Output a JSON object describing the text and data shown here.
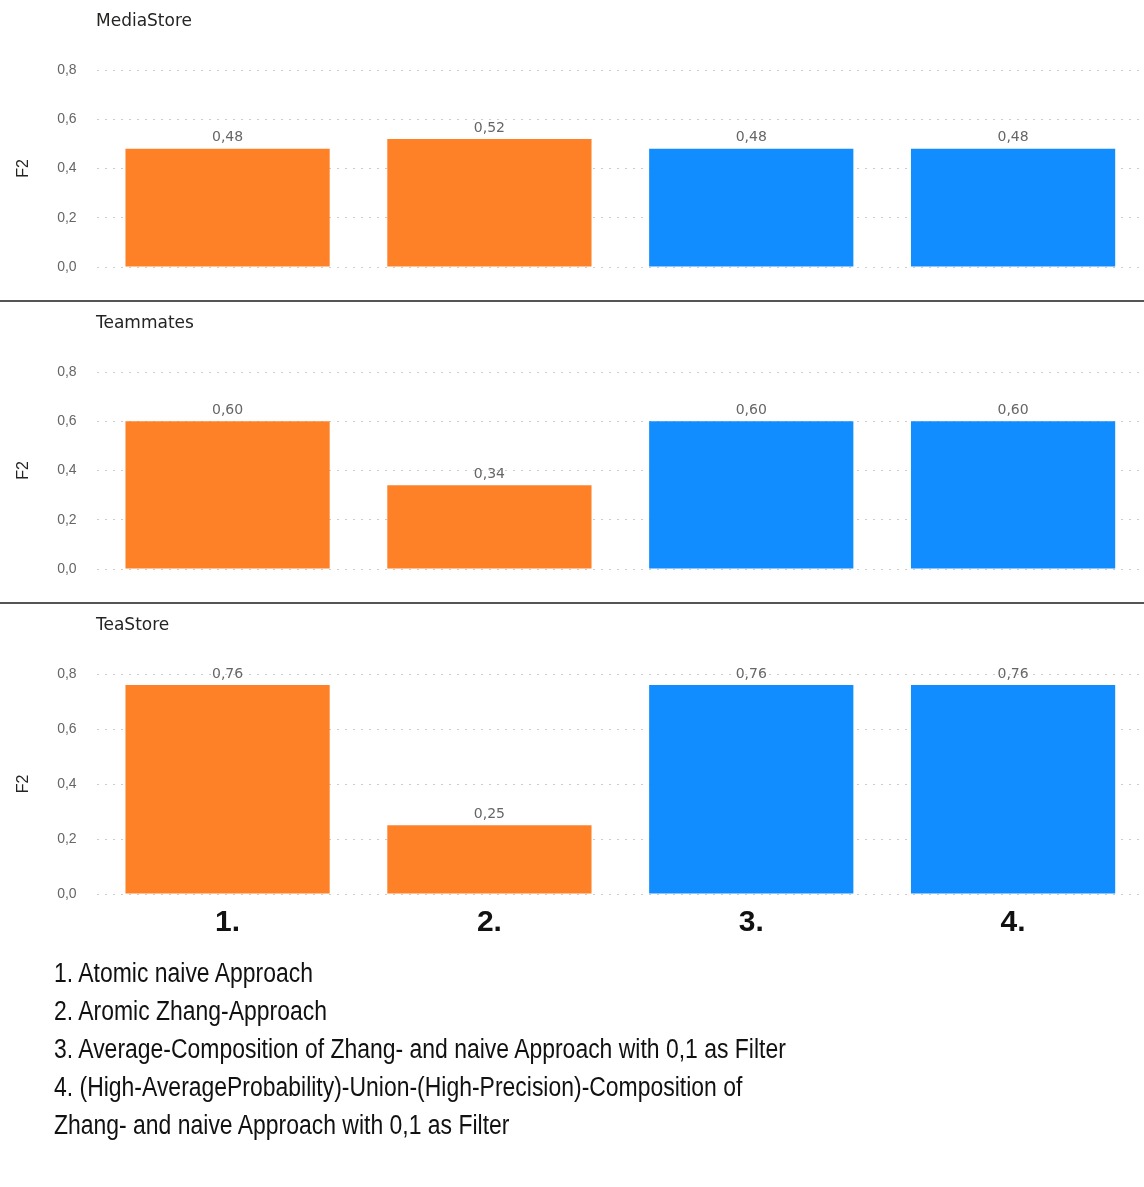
{
  "chart_data": [
    {
      "type": "bar",
      "title": "MediaStore",
      "ylabel": "F2",
      "categories": [
        "1.",
        "2.",
        "3.",
        "4."
      ],
      "values": [
        0.48,
        0.52,
        0.48,
        0.48
      ],
      "value_labels": [
        "0,48",
        "0,52",
        "0,48",
        "0,48"
      ],
      "colors": [
        "#fe8128",
        "#fe8128",
        "#118dff",
        "#118dff"
      ],
      "ylim": [
        0,
        0.8
      ],
      "yticks": [
        {
          "value": 0,
          "label": "0,0"
        },
        {
          "value": 0.2,
          "label": "0,2"
        },
        {
          "value": 0.4,
          "label": "0,4"
        },
        {
          "value": 0.6,
          "label": "0,6"
        },
        {
          "value": 0.8,
          "label": "0,8"
        }
      ],
      "grid": "y",
      "legend": false,
      "tick_labels": "y"
    },
    {
      "type": "bar",
      "title": "Teammates",
      "ylabel": "F2",
      "categories": [
        "1.",
        "2.",
        "3.",
        "4."
      ],
      "values": [
        0.6,
        0.34,
        0.6,
        0.6
      ],
      "value_labels": [
        "0,60",
        "0,34",
        "0,60",
        "0,60"
      ],
      "colors": [
        "#fe8128",
        "#fe8128",
        "#118dff",
        "#118dff"
      ],
      "ylim": [
        0,
        0.8
      ],
      "yticks": [
        {
          "value": 0,
          "label": "0,0"
        },
        {
          "value": 0.2,
          "label": "0,2"
        },
        {
          "value": 0.4,
          "label": "0,4"
        },
        {
          "value": 0.6,
          "label": "0,6"
        },
        {
          "value": 0.8,
          "label": "0,8"
        }
      ],
      "grid": "y",
      "legend": false,
      "tick_labels": "y"
    },
    {
      "type": "bar",
      "title": "TeaStore",
      "ylabel": "F2",
      "categories": [
        "1.",
        "2.",
        "3.",
        "4."
      ],
      "values": [
        0.76,
        0.25,
        0.76,
        0.76
      ],
      "value_labels": [
        "0,76",
        "0,25",
        "0,76",
        "0,76"
      ],
      "colors": [
        "#fe8128",
        "#fe8128",
        "#118dff",
        "#118dff"
      ],
      "ylim": [
        0,
        0.8
      ],
      "yticks": [
        {
          "value": 0,
          "label": "0,0"
        },
        {
          "value": 0.2,
          "label": "0,2"
        },
        {
          "value": 0.4,
          "label": "0,4"
        },
        {
          "value": 0.6,
          "label": "0,6"
        },
        {
          "value": 0.8,
          "label": "0,8"
        }
      ],
      "grid": "y",
      "legend": false,
      "annotations": [
        "1. Atomic naive Approach",
        "2. Aromic Zhang-Approach",
        "3. Average-Composition of Zhang- and naive Approach with 0,1 as Filter",
        "4. (High-AverageProbability)-Union-(High-Precision)-Composition of Zhang- and naive Approach with 0,1 as Filter"
      ]
    }
  ]
}
